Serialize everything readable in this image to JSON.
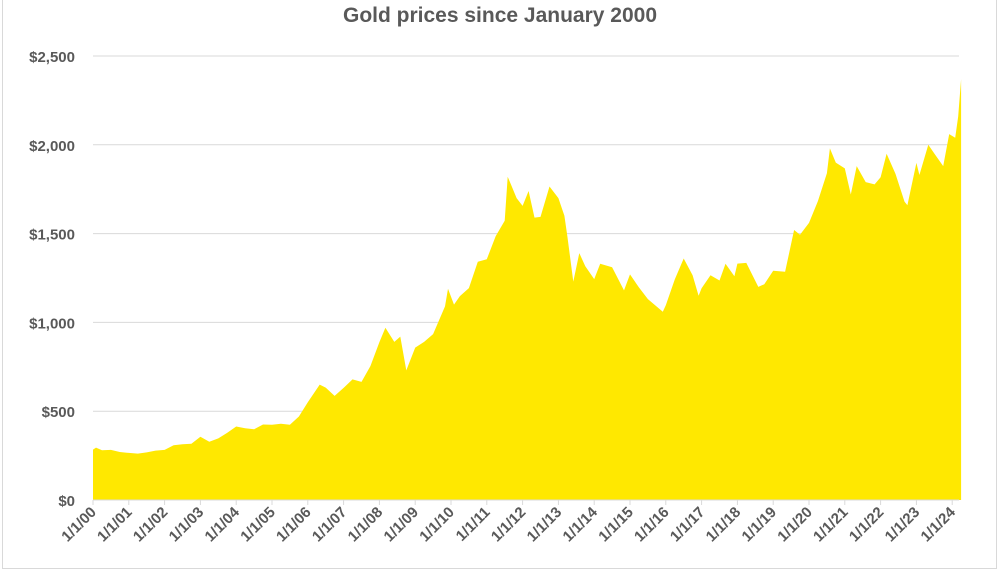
{
  "chart_data": {
    "type": "area",
    "title": "Gold prices since January 2000",
    "xlabel": "",
    "ylabel": "",
    "ylim": [
      0,
      2500
    ],
    "grid": true,
    "legend": "none",
    "fill_color": "#FFE800",
    "y_ticks": [
      {
        "value": 0,
        "label": "$0"
      },
      {
        "value": 500,
        "label": "$500"
      },
      {
        "value": 1000,
        "label": "$1,000"
      },
      {
        "value": 1500,
        "label": "$1,500"
      },
      {
        "value": 2000,
        "label": "$2,000"
      },
      {
        "value": 2500,
        "label": "$2,500"
      }
    ],
    "x_ticks": [
      "1/1/00",
      "1/1/01",
      "1/1/02",
      "1/1/03",
      "1/1/04",
      "1/1/05",
      "1/1/06",
      "1/1/07",
      "1/1/08",
      "1/1/09",
      "1/1/10",
      "1/1/11",
      "1/1/12",
      "1/1/13",
      "1/1/14",
      "1/1/15",
      "1/1/16",
      "1/1/17",
      "1/1/18",
      "1/1/19",
      "1/1/20",
      "1/1/21",
      "1/1/22",
      "1/1/23",
      "1/1/24"
    ],
    "points": [
      [
        "2000-01",
        284
      ],
      [
        "2000-02",
        295
      ],
      [
        "2000-04",
        280
      ],
      [
        "2000-07",
        282
      ],
      [
        "2000-10",
        270
      ],
      [
        "2001-01",
        265
      ],
      [
        "2001-04",
        261
      ],
      [
        "2001-07",
        268
      ],
      [
        "2001-10",
        278
      ],
      [
        "2002-01",
        282
      ],
      [
        "2002-04",
        308
      ],
      [
        "2002-07",
        314
      ],
      [
        "2002-10",
        317
      ],
      [
        "2003-01",
        356
      ],
      [
        "2003-04",
        328
      ],
      [
        "2003-07",
        347
      ],
      [
        "2003-10",
        379
      ],
      [
        "2004-01",
        414
      ],
      [
        "2004-04",
        404
      ],
      [
        "2004-07",
        398
      ],
      [
        "2004-10",
        425
      ],
      [
        "2005-01",
        424
      ],
      [
        "2005-04",
        429
      ],
      [
        "2005-07",
        424
      ],
      [
        "2005-10",
        470
      ],
      [
        "2006-01",
        550
      ],
      [
        "2006-05",
        650
      ],
      [
        "2006-07",
        633
      ],
      [
        "2006-10",
        586
      ],
      [
        "2007-01",
        631
      ],
      [
        "2007-04",
        679
      ],
      [
        "2007-07",
        665
      ],
      [
        "2007-10",
        754
      ],
      [
        "2008-01",
        889
      ],
      [
        "2008-03",
        970
      ],
      [
        "2008-06",
        890
      ],
      [
        "2008-08",
        920
      ],
      [
        "2008-10",
        730
      ],
      [
        "2009-01",
        858
      ],
      [
        "2009-04",
        890
      ],
      [
        "2009-07",
        934
      ],
      [
        "2009-11",
        1090
      ],
      [
        "2009-12",
        1190
      ],
      [
        "2010-02",
        1100
      ],
      [
        "2010-04",
        1148
      ],
      [
        "2010-07",
        1193
      ],
      [
        "2010-10",
        1342
      ],
      [
        "2011-01",
        1356
      ],
      [
        "2011-04",
        1486
      ],
      [
        "2011-07",
        1572
      ],
      [
        "2011-08",
        1820
      ],
      [
        "2011-09",
        1780
      ],
      [
        "2011-11",
        1700
      ],
      [
        "2012-01",
        1656
      ],
      [
        "2012-03",
        1740
      ],
      [
        "2012-05",
        1590
      ],
      [
        "2012-07",
        1594
      ],
      [
        "2012-10",
        1765
      ],
      [
        "2013-01",
        1700
      ],
      [
        "2013-03",
        1600
      ],
      [
        "2013-04",
        1487
      ],
      [
        "2013-06",
        1230
      ],
      [
        "2013-08",
        1390
      ],
      [
        "2013-10",
        1316
      ],
      [
        "2014-01",
        1244
      ],
      [
        "2014-03",
        1330
      ],
      [
        "2014-07",
        1311
      ],
      [
        "2014-11",
        1180
      ],
      [
        "2015-01",
        1270
      ],
      [
        "2015-04",
        1197
      ],
      [
        "2015-07",
        1131
      ],
      [
        "2015-12",
        1060
      ],
      [
        "2016-01",
        1097
      ],
      [
        "2016-04",
        1242
      ],
      [
        "2016-07",
        1360
      ],
      [
        "2016-10",
        1266
      ],
      [
        "2016-12",
        1150
      ],
      [
        "2017-01",
        1192
      ],
      [
        "2017-04",
        1266
      ],
      [
        "2017-07",
        1236
      ],
      [
        "2017-09",
        1330
      ],
      [
        "2017-12",
        1260
      ],
      [
        "2018-01",
        1331
      ],
      [
        "2018-04",
        1335
      ],
      [
        "2018-08",
        1200
      ],
      [
        "2018-10",
        1215
      ],
      [
        "2019-01",
        1291
      ],
      [
        "2019-05",
        1285
      ],
      [
        "2019-08",
        1520
      ],
      [
        "2019-10",
        1494
      ],
      [
        "2020-01",
        1560
      ],
      [
        "2020-04",
        1683
      ],
      [
        "2020-07",
        1840
      ],
      [
        "2020-08",
        1980
      ],
      [
        "2020-10",
        1900
      ],
      [
        "2021-01",
        1867
      ],
      [
        "2021-03",
        1720
      ],
      [
        "2021-05",
        1880
      ],
      [
        "2021-08",
        1790
      ],
      [
        "2021-11",
        1777
      ],
      [
        "2022-01",
        1817
      ],
      [
        "2022-03",
        1950
      ],
      [
        "2022-06",
        1836
      ],
      [
        "2022-09",
        1680
      ],
      [
        "2022-10",
        1660
      ],
      [
        "2023-01",
        1898
      ],
      [
        "2023-02",
        1830
      ],
      [
        "2023-05",
        2000
      ],
      [
        "2023-07",
        1951
      ],
      [
        "2023-10",
        1880
      ],
      [
        "2023-12",
        2060
      ],
      [
        "2024-02",
        2040
      ],
      [
        "2024-03",
        2160
      ],
      [
        "2024-04",
        2370
      ]
    ]
  }
}
